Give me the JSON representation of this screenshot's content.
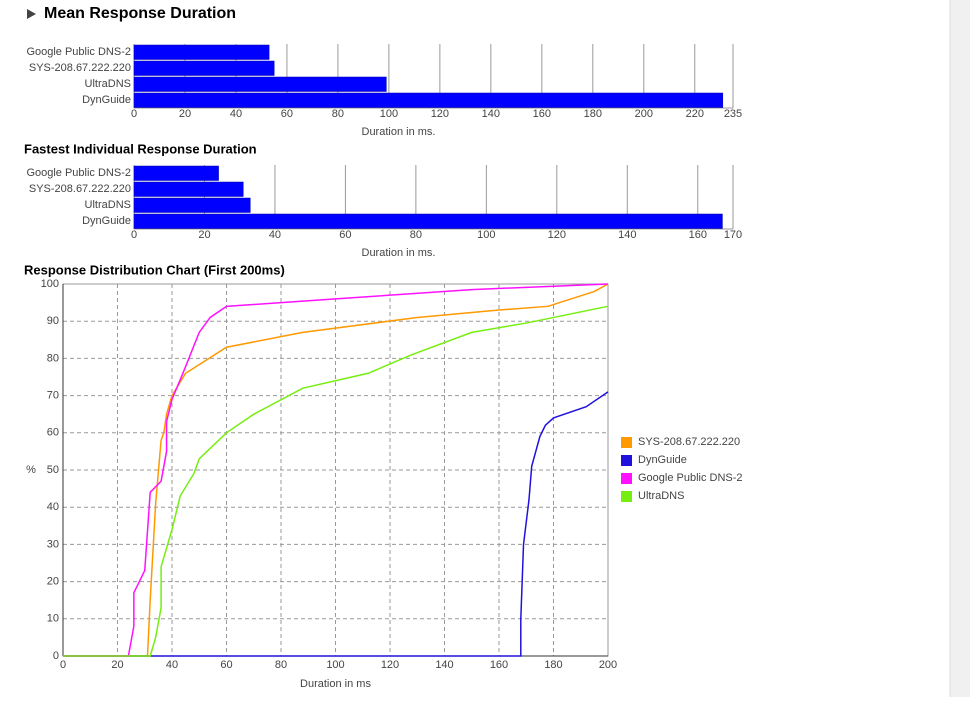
{
  "chart_data": [
    {
      "type": "hbar",
      "title": "Mean Response Duration",
      "categories": [
        "Google Public DNS-2",
        "SYS-208.67.222.220",
        "UltraDNS",
        "DynGuide"
      ],
      "values": [
        53,
        55,
        99,
        231
      ],
      "color": "#0000ff",
      "xlim": [
        0,
        235
      ],
      "xticks": [
        0,
        20,
        40,
        60,
        80,
        100,
        120,
        140,
        160,
        180,
        200,
        220,
        235
      ],
      "xlabel": "Duration in ms.",
      "grid": true
    },
    {
      "type": "hbar",
      "title": "Fastest Individual Response Duration",
      "categories": [
        "Google Public DNS-2",
        "SYS-208.67.222.220",
        "UltraDNS",
        "DynGuide"
      ],
      "values": [
        24,
        31,
        33,
        167
      ],
      "color": "#0000ff",
      "xlim": [
        0,
        170
      ],
      "xticks": [
        0,
        20,
        40,
        60,
        80,
        100,
        120,
        140,
        160,
        170
      ],
      "xlabel": "Duration in ms.",
      "grid": true
    },
    {
      "type": "line",
      "title": "Response Distribution Chart (First 200ms)",
      "xlabel": "Duration in ms",
      "ylabel": "%",
      "xlim": [
        0,
        200
      ],
      "xticks": [
        0,
        20,
        40,
        60,
        80,
        100,
        120,
        140,
        160,
        180,
        200
      ],
      "ylim": [
        0,
        100
      ],
      "yticks": [
        0,
        10,
        20,
        30,
        40,
        50,
        60,
        70,
        80,
        90,
        100
      ],
      "grid": true,
      "legend": "right",
      "series": [
        {
          "name": "SYS-208.67.222.220",
          "color": "#ff9900",
          "x": [
            0,
            31,
            32,
            34,
            36,
            37,
            38,
            40,
            45,
            60,
            88,
            130,
            160,
            178,
            195,
            200
          ],
          "values": [
            0,
            0,
            15,
            41,
            58,
            60,
            65,
            70,
            76,
            83,
            87,
            91,
            93,
            94,
            98,
            100
          ]
        },
        {
          "name": "DynGuide",
          "color": "#2211dd",
          "x": [
            0,
            168,
            168,
            169,
            171,
            172,
            175,
            177,
            180,
            192,
            200
          ],
          "values": [
            0,
            0,
            10,
            30,
            42,
            51,
            59,
            62,
            64,
            67,
            71
          ]
        },
        {
          "name": "Google Public DNS-2",
          "color": "#ff11ff",
          "x": [
            0,
            24,
            26,
            26,
            30,
            32,
            36,
            38,
            38,
            40,
            44,
            50,
            54,
            60,
            100,
            150,
            200
          ],
          "values": [
            0,
            0,
            8,
            17,
            23,
            44,
            47,
            55,
            63,
            69,
            76,
            87,
            91,
            94,
            96,
            98.5,
            100
          ]
        },
        {
          "name": "UltraDNS",
          "color": "#77ee11",
          "x": [
            0,
            32,
            34,
            36,
            36,
            40,
            43,
            48,
            50,
            60,
            70,
            88,
            112,
            128,
            150,
            170,
            200
          ],
          "values": [
            0,
            0,
            5,
            13,
            24,
            34,
            43,
            49,
            53,
            60,
            65,
            72,
            76,
            81,
            87,
            89.5,
            94
          ]
        }
      ]
    }
  ]
}
